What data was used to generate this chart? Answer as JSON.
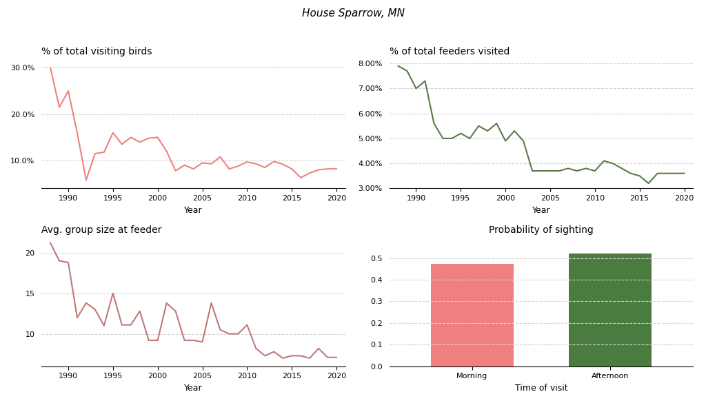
{
  "title": "House Sparrow, MN",
  "ax1_title": "% of total visiting birds",
  "ax2_title": "% of total feeders visited",
  "ax3_title": "Avg. group size at feeder",
  "ax4_title": "Probability of sighting",
  "xlabel_time": "Time of visit",
  "xlabel_year": "Year",
  "pct_birds_years": [
    1988,
    1989,
    1990,
    1991,
    1992,
    1993,
    1994,
    1995,
    1996,
    1997,
    1998,
    1999,
    2000,
    2001,
    2002,
    2003,
    2004,
    2005,
    2006,
    2007,
    2008,
    2009,
    2010,
    2011,
    2012,
    2013,
    2014,
    2015,
    2016,
    2017,
    2018,
    2019,
    2020
  ],
  "pct_birds_values": [
    0.3,
    0.215,
    0.25,
    0.16,
    0.058,
    0.115,
    0.118,
    0.16,
    0.135,
    0.15,
    0.14,
    0.148,
    0.15,
    0.12,
    0.078,
    0.09,
    0.082,
    0.095,
    0.093,
    0.108,
    0.082,
    0.088,
    0.097,
    0.093,
    0.085,
    0.098,
    0.092,
    0.082,
    0.063,
    0.073,
    0.08,
    0.082,
    0.082
  ],
  "pct_feeders_years": [
    1988,
    1989,
    1990,
    1991,
    1992,
    1993,
    1994,
    1995,
    1996,
    1997,
    1998,
    1999,
    2000,
    2001,
    2002,
    2003,
    2004,
    2005,
    2006,
    2007,
    2008,
    2009,
    2010,
    2011,
    2012,
    2013,
    2014,
    2015,
    2016,
    2017,
    2018,
    2019,
    2020
  ],
  "pct_feeders_values": [
    0.079,
    0.077,
    0.07,
    0.073,
    0.056,
    0.05,
    0.05,
    0.052,
    0.05,
    0.055,
    0.053,
    0.056,
    0.049,
    0.053,
    0.049,
    0.037,
    0.037,
    0.037,
    0.037,
    0.038,
    0.037,
    0.038,
    0.037,
    0.041,
    0.04,
    0.038,
    0.036,
    0.035,
    0.032,
    0.036,
    0.036,
    0.036,
    0.036
  ],
  "group_size_years": [
    1988,
    1989,
    1990,
    1991,
    1992,
    1993,
    1994,
    1995,
    1996,
    1997,
    1998,
    1999,
    2000,
    2001,
    2002,
    2003,
    2004,
    2005,
    2006,
    2007,
    2008,
    2009,
    2010,
    2011,
    2012,
    2013,
    2014,
    2015,
    2016,
    2017,
    2018,
    2019,
    2020
  ],
  "group_size_values": [
    21.2,
    19.0,
    18.8,
    12.0,
    13.8,
    13.0,
    11.0,
    15.0,
    11.1,
    11.1,
    12.8,
    9.2,
    9.2,
    13.8,
    12.8,
    9.2,
    9.2,
    9.0,
    13.8,
    10.5,
    10.0,
    10.0,
    11.1,
    8.2,
    7.3,
    7.8,
    7.0,
    7.3,
    7.3,
    7.0,
    8.2,
    7.1,
    7.1
  ],
  "bar_categories": [
    "Morning",
    "Afternoon"
  ],
  "bar_values": [
    0.475,
    0.52
  ],
  "bar_colors": [
    "#f08080",
    "#4a7c3f"
  ],
  "line_color_birds": "#f08080",
  "line_color_feeders": "#5a7a45",
  "line_color_group": "#c07878",
  "ylim_birds": [
    0.04,
    0.32
  ],
  "ylim_feeders": [
    0.03,
    0.082
  ],
  "ylim_group": [
    6,
    22
  ],
  "ylim_prob": [
    0,
    0.6
  ],
  "yticks_birds": [
    0.1,
    0.2,
    0.3
  ],
  "yticks_feeders": [
    0.03,
    0.04,
    0.05,
    0.06,
    0.07,
    0.08
  ],
  "yticks_group": [
    10,
    15,
    20
  ],
  "yticks_prob": [
    0.0,
    0.1,
    0.2,
    0.3,
    0.4,
    0.5
  ],
  "xlim_years": [
    1987,
    2021
  ],
  "xticks_years": [
    1990,
    1995,
    2000,
    2005,
    2010,
    2015,
    2020
  ]
}
